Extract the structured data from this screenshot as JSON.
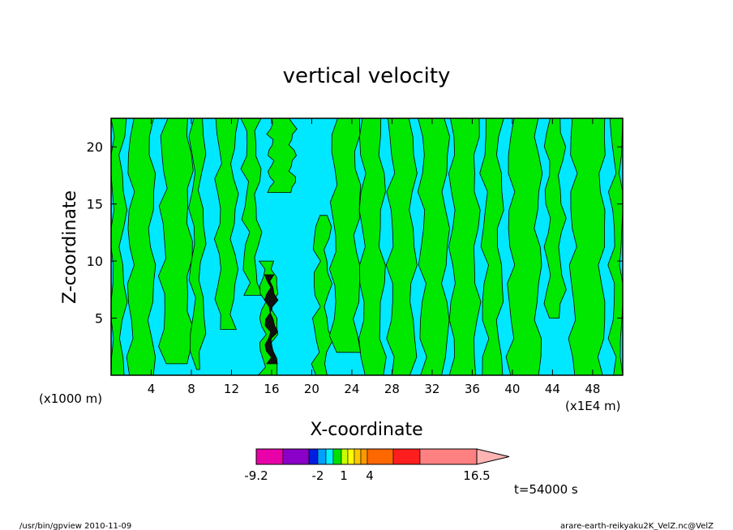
{
  "footer": {
    "left": "/usr/bin/gpview   2010-11-09",
    "right": "arare-earth-reikyaku2K_VelZ.nc@VelZ"
  },
  "time_label": "t=54000 s",
  "colorbar": {
    "colors": [
      "#e800a8",
      "#8a00c8",
      "#001ee0",
      "#00a0ff",
      "#00f0ff",
      "#00e000",
      "#c8ff00",
      "#ffff00",
      "#ffc800",
      "#ff9800",
      "#ff6800",
      "#ff1e1e",
      "#ff8080"
    ],
    "extend_color": "#ffb4b4",
    "tick_labels": [
      "-9.2",
      "-2",
      "1",
      "4",
      "16.5"
    ]
  },
  "chart_data": {
    "type": "heatmap",
    "title": "vertical velocity",
    "xlabel": "X-coordinate",
    "ylabel": "Z-coordinate",
    "x_unit_left": "(x1000 m)",
    "x_unit_right": "(x1E4 m)",
    "x_ticks": [
      4,
      8,
      12,
      16,
      20,
      24,
      28,
      32,
      36,
      40,
      44,
      48
    ],
    "y_ticks": [
      5,
      10,
      15,
      20
    ],
    "xlim": [
      0,
      51
    ],
    "ylim": [
      0,
      22.5
    ],
    "fill_colors": {
      "negative": "#00e8ff",
      "positive": "#00e800",
      "strong": "#101010"
    },
    "regions": [
      {
        "x_center": 0.6,
        "width": 1.2,
        "z_bottom": 0,
        "z_top": 22.5,
        "kind": "positive"
      },
      {
        "x_center": 3.0,
        "width": 2.2,
        "z_bottom": 0,
        "z_top": 22.5,
        "kind": "positive"
      },
      {
        "x_center": 6.5,
        "width": 2.6,
        "z_bottom": 1,
        "z_top": 22.5,
        "kind": "positive"
      },
      {
        "x_center": 8.6,
        "width": 1.0,
        "z_bottom": 0.5,
        "z_top": 22.5,
        "kind": "positive"
      },
      {
        "x_center": 11.5,
        "width": 1.6,
        "z_bottom": 4,
        "z_top": 22.5,
        "kind": "positive"
      },
      {
        "x_center": 14.0,
        "width": 1.2,
        "z_bottom": 7,
        "z_top": 22.5,
        "kind": "positive"
      },
      {
        "x_center": 15.7,
        "width": 1.3,
        "z_bottom": 0,
        "z_top": 10,
        "kind": "positive"
      },
      {
        "x_center": 17.0,
        "width": 2.2,
        "z_bottom": 16,
        "z_top": 22.5,
        "kind": "positive"
      },
      {
        "x_center": 21.0,
        "width": 1.2,
        "z_bottom": 0,
        "z_top": 14,
        "kind": "positive"
      },
      {
        "x_center": 23.4,
        "width": 2.4,
        "z_bottom": 2,
        "z_top": 22.5,
        "kind": "positive"
      },
      {
        "x_center": 26.0,
        "width": 2.0,
        "z_bottom": 0,
        "z_top": 22.5,
        "kind": "positive"
      },
      {
        "x_center": 29.0,
        "width": 2.2,
        "z_bottom": 0,
        "z_top": 22.5,
        "kind": "positive"
      },
      {
        "x_center": 32.2,
        "width": 2.4,
        "z_bottom": 0,
        "z_top": 22.5,
        "kind": "positive"
      },
      {
        "x_center": 35.2,
        "width": 2.4,
        "z_bottom": 0,
        "z_top": 22.5,
        "kind": "positive"
      },
      {
        "x_center": 38.0,
        "width": 1.6,
        "z_bottom": 0,
        "z_top": 22.5,
        "kind": "positive"
      },
      {
        "x_center": 41.2,
        "width": 2.8,
        "z_bottom": 0,
        "z_top": 22.5,
        "kind": "positive"
      },
      {
        "x_center": 44.2,
        "width": 1.4,
        "z_bottom": 5,
        "z_top": 22.5,
        "kind": "positive"
      },
      {
        "x_center": 47.5,
        "width": 3.0,
        "z_bottom": 0,
        "z_top": 22.5,
        "kind": "positive"
      },
      {
        "x_center": 50.5,
        "width": 1.0,
        "z_bottom": 0,
        "z_top": 22.5,
        "kind": "positive"
      },
      {
        "x_center": 15.9,
        "width": 0.6,
        "z_bottom": 1,
        "z_top": 8.8,
        "kind": "strong"
      }
    ]
  }
}
